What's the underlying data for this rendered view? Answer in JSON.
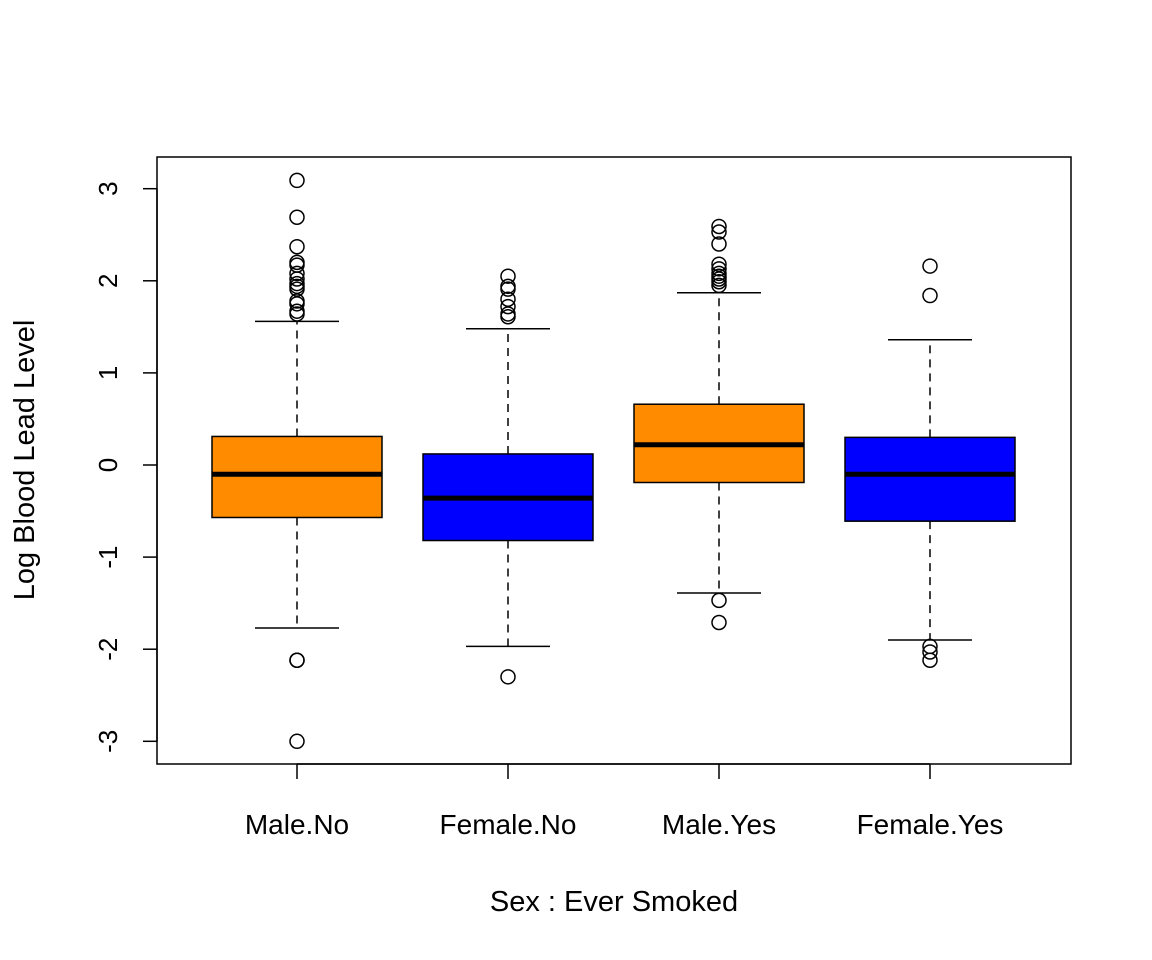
{
  "chart_data": {
    "type": "boxplot",
    "title": "",
    "xlabel": "Sex : Ever Smoked",
    "ylabel": "Log Blood Lead Level",
    "ylim": [
      -3.3,
      3.3
    ],
    "yticks": [
      -3,
      -2,
      -1,
      0,
      1,
      2,
      3
    ],
    "ytick_labels": [
      "-3",
      "-2",
      "-1",
      "0",
      "1",
      "2",
      "3"
    ],
    "grid": false,
    "legend": "none",
    "categories": [
      "Male.No",
      "Female.No",
      "Male.Yes",
      "Female.Yes"
    ],
    "boxes": [
      {
        "category": "Male.No",
        "color": "#FF8C00",
        "whisker_low": -1.77,
        "q1": -0.57,
        "median": -0.1,
        "q3": 0.31,
        "whisker_high": 1.56,
        "outliers": [
          3.09,
          2.69,
          2.37,
          2.2,
          2.17,
          2.08,
          2.02,
          1.97,
          1.94,
          1.91,
          1.78,
          1.75,
          1.67,
          1.64,
          -2.12,
          -2.12,
          -3.0
        ]
      },
      {
        "category": "Female.No",
        "color": "#0000FF",
        "whisker_low": -1.97,
        "q1": -0.82,
        "median": -0.36,
        "q3": 0.12,
        "whisker_high": 1.48,
        "outliers": [
          2.05,
          1.94,
          1.91,
          1.8,
          1.72,
          1.64,
          1.61,
          -2.3
        ]
      },
      {
        "category": "Male.Yes",
        "color": "#FF8C00",
        "whisker_low": -1.39,
        "q1": -0.19,
        "median": 0.22,
        "q3": 0.66,
        "whisker_high": 1.87,
        "outliers": [
          2.59,
          2.53,
          2.4,
          2.18,
          2.13,
          2.08,
          2.05,
          2.02,
          1.99,
          1.95,
          -1.47,
          -1.71
        ]
      },
      {
        "category": "Female.Yes",
        "color": "#0000FF",
        "whisker_low": -1.9,
        "q1": -0.61,
        "median": -0.1,
        "q3": 0.3,
        "whisker_high": 1.36,
        "outliers": [
          2.16,
          1.84,
          -1.97,
          -2.03,
          -2.12
        ]
      }
    ]
  }
}
